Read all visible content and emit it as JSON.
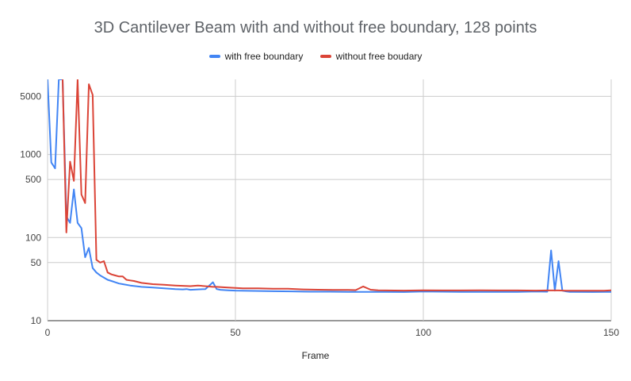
{
  "chart_data": {
    "type": "line",
    "title": "3D Cantilever Beam with and without free boundary, 128 points",
    "xlabel": "Frame",
    "ylabel": "",
    "xlim": [
      0,
      150
    ],
    "ylim": [
      10,
      8000
    ],
    "y_scale": "log",
    "x_ticks": [
      0,
      50,
      100,
      150
    ],
    "y_ticks": [
      10,
      50,
      100,
      500,
      1000,
      5000
    ],
    "legend_position": "top",
    "grid": true,
    "series": [
      {
        "name": "with free boundary",
        "color": "#4285f4",
        "x": [
          0,
          1,
          2,
          3,
          4,
          5,
          6,
          7,
          8,
          9,
          10,
          11,
          12,
          13,
          14,
          15,
          16,
          17,
          18,
          19,
          20,
          22,
          25,
          28,
          31,
          34,
          36,
          37,
          38,
          40,
          42,
          44,
          45,
          46,
          48,
          50,
          55,
          60,
          65,
          70,
          75,
          80,
          85,
          90,
          95,
          100,
          105,
          110,
          115,
          120,
          125,
          130,
          133,
          134,
          135,
          136,
          137,
          138,
          139,
          140,
          145,
          150
        ],
        "y": [
          8000,
          800,
          680,
          8000,
          8000,
          180,
          150,
          380,
          150,
          130,
          58,
          75,
          43,
          38,
          35,
          33,
          31,
          30,
          29,
          28,
          27.5,
          26.5,
          25.5,
          25,
          24.5,
          24,
          23.8,
          24,
          23.5,
          23.8,
          24,
          29,
          24,
          23.5,
          23.2,
          23,
          22.8,
          22.6,
          22.5,
          22.3,
          22.3,
          22.2,
          22.2,
          22.2,
          22.1,
          22.4,
          22.3,
          22.2,
          22.2,
          22.2,
          22.2,
          22.4,
          22.3,
          70,
          23,
          52,
          23,
          22.5,
          22.2,
          22.2,
          22.1,
          22.2
        ]
      },
      {
        "name": "without free boudary",
        "color": "#db4437",
        "x": [
          0,
          3,
          4,
          5,
          6,
          7,
          8,
          9,
          10,
          11,
          12,
          13,
          14,
          15,
          16,
          17,
          18,
          19,
          20,
          21,
          22,
          23,
          25,
          28,
          31,
          34,
          38,
          40,
          44,
          45,
          48,
          52,
          56,
          60,
          64,
          68,
          72,
          76,
          80,
          82,
          84,
          86,
          88,
          90,
          95,
          100,
          105,
          110,
          115,
          120,
          125,
          130,
          133,
          136,
          138,
          140,
          145,
          148,
          150
        ],
        "y": [
          null,
          null,
          8000,
          115,
          820,
          480,
          8000,
          330,
          260,
          7000,
          5200,
          54,
          50,
          52,
          38,
          36,
          35,
          34,
          34,
          31,
          30.5,
          30,
          28.5,
          27.5,
          27,
          26.5,
          26,
          26.5,
          25.5,
          25.5,
          25,
          24.5,
          24.5,
          24.2,
          24.2,
          23.8,
          23.6,
          23.4,
          23.4,
          23.3,
          25.8,
          23.6,
          23.2,
          23.1,
          23,
          23.2,
          23.1,
          23.1,
          23.2,
          23.1,
          23.1,
          23,
          23.1,
          23.1,
          22.9,
          22.9,
          22.9,
          22.9,
          23.2
        ]
      }
    ]
  }
}
